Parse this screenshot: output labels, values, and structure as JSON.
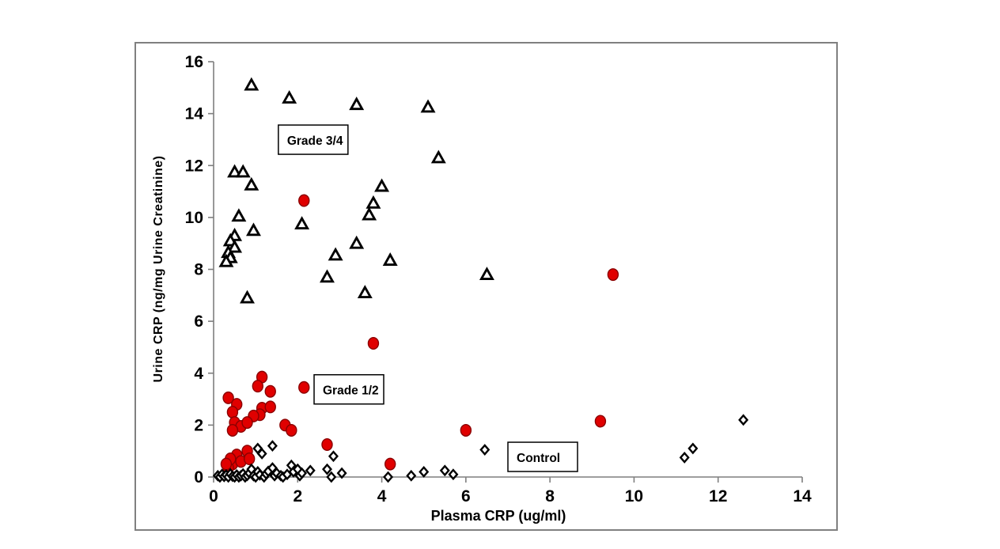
{
  "figure": {
    "background": "#ffffff",
    "frame_color": "#808080"
  },
  "chart_data": {
    "type": "scatter",
    "title": "",
    "xlabel": "Plasma CRP (ug/ml)",
    "ylabel": "Urine CRP (ng/mg Urine Creatinine)",
    "xlim": [
      0,
      14
    ],
    "ylim": [
      0,
      16
    ],
    "xticks": [
      0,
      2,
      4,
      6,
      8,
      10,
      12,
      14
    ],
    "yticks": [
      0,
      2,
      4,
      6,
      8,
      10,
      12,
      14,
      16
    ],
    "grid": false,
    "axis_color": "#7f7f7f",
    "tick_label_color": "#000000",
    "series": [
      {
        "name": "Grade 3/4",
        "marker": "triangle-open",
        "stroke": "#000000",
        "fill": "#ffffff",
        "points": [
          [
            0.9,
            15.1
          ],
          [
            1.8,
            14.6
          ],
          [
            3.4,
            14.35
          ],
          [
            5.1,
            14.25
          ],
          [
            5.35,
            12.3
          ],
          [
            0.5,
            11.75
          ],
          [
            0.7,
            11.75
          ],
          [
            0.9,
            11.25
          ],
          [
            4.0,
            11.2
          ],
          [
            3.8,
            10.55
          ],
          [
            3.7,
            10.1
          ],
          [
            0.6,
            10.05
          ],
          [
            2.1,
            9.75
          ],
          [
            0.95,
            9.5
          ],
          [
            0.5,
            9.3
          ],
          [
            0.4,
            9.1
          ],
          [
            0.5,
            8.85
          ],
          [
            0.35,
            8.65
          ],
          [
            0.4,
            8.45
          ],
          [
            0.3,
            8.3
          ],
          [
            3.4,
            9.0
          ],
          [
            2.9,
            8.55
          ],
          [
            4.2,
            8.35
          ],
          [
            2.7,
            7.7
          ],
          [
            3.6,
            7.1
          ],
          [
            6.5,
            7.8
          ],
          [
            0.8,
            6.9
          ]
        ]
      },
      {
        "name": "Grade 1/2",
        "marker": "circle-filled",
        "stroke": "#8b0000",
        "fill": "#e00000",
        "points": [
          [
            2.15,
            10.65
          ],
          [
            9.5,
            7.8
          ],
          [
            3.8,
            5.15
          ],
          [
            1.15,
            3.85
          ],
          [
            1.05,
            3.5
          ],
          [
            1.35,
            3.3
          ],
          [
            2.15,
            3.45
          ],
          [
            0.35,
            3.05
          ],
          [
            0.55,
            2.8
          ],
          [
            0.45,
            2.5
          ],
          [
            1.15,
            2.65
          ],
          [
            1.35,
            2.7
          ],
          [
            1.1,
            2.4
          ],
          [
            0.95,
            2.35
          ],
          [
            0.5,
            2.1
          ],
          [
            0.65,
            1.95
          ],
          [
            0.8,
            2.1
          ],
          [
            0.45,
            1.8
          ],
          [
            1.7,
            2.0
          ],
          [
            1.85,
            1.8
          ],
          [
            0.8,
            1.0
          ],
          [
            0.55,
            0.85
          ],
          [
            0.45,
            0.5
          ],
          [
            0.65,
            0.6
          ],
          [
            0.35,
            0.35
          ],
          [
            0.85,
            0.7
          ],
          [
            0.4,
            0.7
          ],
          [
            0.3,
            0.5
          ],
          [
            2.7,
            1.25
          ],
          [
            4.2,
            0.5
          ],
          [
            6.0,
            1.8
          ],
          [
            9.2,
            2.15
          ]
        ]
      },
      {
        "name": "Control",
        "marker": "diamond-open",
        "stroke": "#000000",
        "fill": "#ffffff",
        "points": [
          [
            0.1,
            0.05
          ],
          [
            0.15,
            0.0
          ],
          [
            0.2,
            0.1
          ],
          [
            0.25,
            0.02
          ],
          [
            0.3,
            0.08
          ],
          [
            0.35,
            0.0
          ],
          [
            0.4,
            0.12
          ],
          [
            0.45,
            0.03
          ],
          [
            0.5,
            0.0
          ],
          [
            0.55,
            0.08
          ],
          [
            0.6,
            0.0
          ],
          [
            0.65,
            0.05
          ],
          [
            0.7,
            0.12
          ],
          [
            0.75,
            0.0
          ],
          [
            0.8,
            0.06
          ],
          [
            0.85,
            0.15
          ],
          [
            0.9,
            0.3
          ],
          [
            0.95,
            0.05
          ],
          [
            1.0,
            0.0
          ],
          [
            1.05,
            0.2
          ],
          [
            1.1,
            0.08
          ],
          [
            1.2,
            0.0
          ],
          [
            1.25,
            0.12
          ],
          [
            1.3,
            0.22
          ],
          [
            1.4,
            0.35
          ],
          [
            1.45,
            0.05
          ],
          [
            1.5,
            0.15
          ],
          [
            1.6,
            0.05
          ],
          [
            1.65,
            0.0
          ],
          [
            1.75,
            0.1
          ],
          [
            1.85,
            0.45
          ],
          [
            1.9,
            0.2
          ],
          [
            2.0,
            0.3
          ],
          [
            2.05,
            0.05
          ],
          [
            2.1,
            0.15
          ],
          [
            1.05,
            1.1
          ],
          [
            1.15,
            0.9
          ],
          [
            1.4,
            1.2
          ],
          [
            2.3,
            0.25
          ],
          [
            2.7,
            0.3
          ],
          [
            2.8,
            0.0
          ],
          [
            2.85,
            0.8
          ],
          [
            3.05,
            0.15
          ],
          [
            4.15,
            0.0
          ],
          [
            4.7,
            0.05
          ],
          [
            5.0,
            0.2
          ],
          [
            5.5,
            0.25
          ],
          [
            5.7,
            0.1
          ],
          [
            6.45,
            1.05
          ],
          [
            11.2,
            0.75
          ],
          [
            11.4,
            1.1
          ],
          [
            12.6,
            2.2
          ]
        ]
      }
    ],
    "annotations": [
      {
        "label": "Grade 3/4",
        "x": 1.54,
        "y": 13.56
      },
      {
        "label": "Grade 1/2",
        "x": 2.39,
        "y": 3.94
      },
      {
        "label": "Control",
        "x": 7.0,
        "y": 1.34
      }
    ]
  }
}
